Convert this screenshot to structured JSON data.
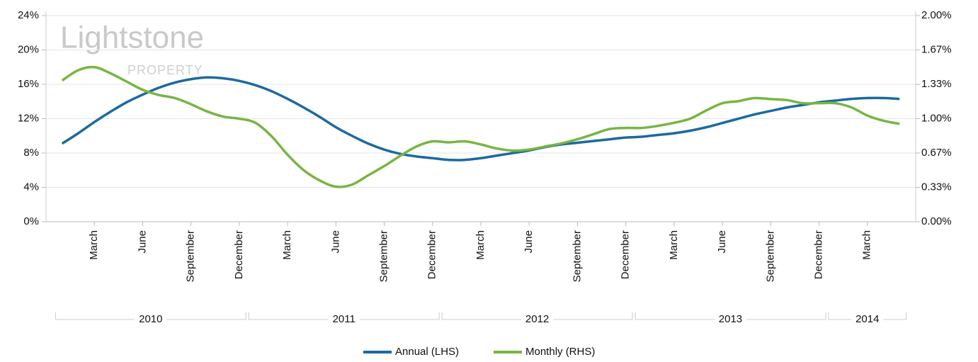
{
  "chart_data": {
    "type": "line",
    "watermark": {
      "title": "Lightstone",
      "subtitle": "PROPERTY"
    },
    "categories": [
      null,
      null,
      "March",
      null,
      null,
      "June",
      null,
      null,
      "September",
      null,
      null,
      "December",
      null,
      null,
      "March",
      null,
      null,
      "June",
      null,
      null,
      "September",
      null,
      null,
      "December",
      null,
      null,
      "March",
      null,
      null,
      "June",
      null,
      null,
      "September",
      null,
      null,
      "December",
      null,
      null,
      "March",
      null,
      null,
      "June",
      null,
      null,
      "September",
      null,
      null,
      "December",
      null,
      null,
      "March",
      null,
      null
    ],
    "years": [
      "2010",
      "2011",
      "2012",
      "2013",
      "2014"
    ],
    "series": [
      {
        "name": "Annual (LHS)",
        "color": "#1b6aa0",
        "values": [
          9.1,
          10.3,
          11.6,
          12.8,
          13.9,
          14.8,
          15.6,
          16.2,
          16.6,
          16.8,
          16.7,
          16.4,
          15.9,
          15.2,
          14.3,
          13.3,
          12.2,
          11.0,
          10.0,
          9.1,
          8.4,
          7.9,
          7.6,
          7.4,
          7.2,
          7.2,
          7.4,
          7.7,
          8.0,
          8.3,
          8.7,
          9.0,
          9.2,
          9.4,
          9.6,
          9.8,
          9.9,
          10.1,
          10.3,
          10.6,
          11.0,
          11.5,
          12.0,
          12.5,
          12.9,
          13.3,
          13.6,
          13.9,
          14.1,
          14.3,
          14.4,
          14.4,
          14.3
        ]
      },
      {
        "name": "Monthly (RHS)",
        "color": "#78b543",
        "axis": "y2",
        "values": [
          1.37,
          1.47,
          1.5,
          1.44,
          1.36,
          1.28,
          1.23,
          1.2,
          1.14,
          1.07,
          1.02,
          1.0,
          0.96,
          0.83,
          0.65,
          0.5,
          0.4,
          0.34,
          0.36,
          0.45,
          0.54,
          0.64,
          0.73,
          0.78,
          0.77,
          0.78,
          0.75,
          0.71,
          0.69,
          0.7,
          0.73,
          0.76,
          0.8,
          0.85,
          0.9,
          0.91,
          0.91,
          0.93,
          0.96,
          1.0,
          1.08,
          1.15,
          1.17,
          1.2,
          1.19,
          1.18,
          1.15,
          1.15,
          1.15,
          1.11,
          1.03,
          0.98,
          0.95
        ]
      }
    ],
    "ylim": [
      0,
      24
    ],
    "yticks": [
      {
        "value": 0,
        "label": "0%"
      },
      {
        "value": 4,
        "label": "4%"
      },
      {
        "value": 8,
        "label": "8%"
      },
      {
        "value": 12,
        "label": "12%"
      },
      {
        "value": 16,
        "label": "16%"
      },
      {
        "value": 20,
        "label": "20%"
      },
      {
        "value": 24,
        "label": "24%"
      }
    ],
    "y2lim": [
      0,
      2
    ],
    "y2ticks": [
      {
        "value": 0,
        "label": "0.00%"
      },
      {
        "value": 0.333,
        "label": "0.33%"
      },
      {
        "value": 0.667,
        "label": "0.67%"
      },
      {
        "value": 1,
        "label": "1.00%"
      },
      {
        "value": 1.333,
        "label": "1.33%"
      },
      {
        "value": 1.667,
        "label": "1.67%"
      },
      {
        "value": 2,
        "label": "2.00%"
      }
    ],
    "grid": true,
    "legend": "bottom"
  }
}
